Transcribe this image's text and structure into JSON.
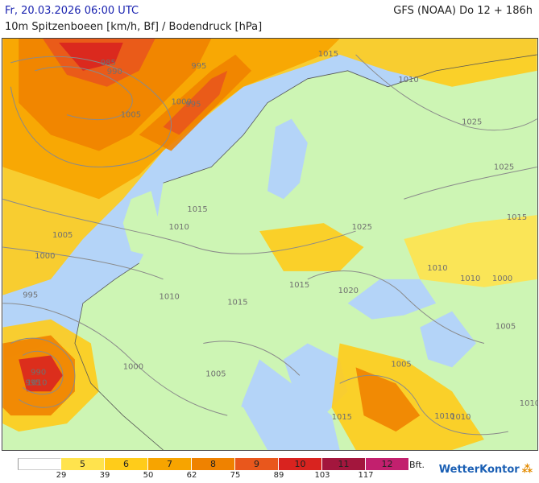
{
  "header": {
    "date": "Fr, 20.03.2026 06:00 UTC",
    "parameter": "10m Spitzenboeen [km/h, Bf] / Bodendruck [hPa]",
    "model": "GFS (NOAA) Do 12 + 186h"
  },
  "legend": {
    "bft_unit": "Bft.",
    "classes": [
      {
        "bft": "",
        "color": "#ffffff",
        "text_color": "#222222"
      },
      {
        "bft": "5",
        "color": "#ffe34d",
        "text_color": "#222222"
      },
      {
        "bft": "6",
        "color": "#ffcc1a",
        "text_color": "#222222"
      },
      {
        "bft": "7",
        "color": "#f7a400",
        "text_color": "#222222"
      },
      {
        "bft": "8",
        "color": "#ef8200",
        "text_color": "#222222"
      },
      {
        "bft": "9",
        "color": "#e9571c",
        "text_color": "#222222"
      },
      {
        "bft": "10",
        "color": "#d9231f",
        "text_color": "#222222"
      },
      {
        "bft": "11",
        "color": "#a3163d",
        "text_color": "#222222"
      },
      {
        "bft": "12",
        "color": "#c2206e",
        "text_color": "#222222"
      }
    ],
    "kmh_ticks": [
      "29",
      "39",
      "50",
      "62",
      "75",
      "89",
      "103",
      "117"
    ]
  },
  "isobars": [
    {
      "value": "995"
    },
    {
      "value": "985"
    },
    {
      "value": "990"
    },
    {
      "value": "995"
    },
    {
      "value": "1000"
    },
    {
      "value": "1005"
    },
    {
      "value": "1015"
    },
    {
      "value": "1010"
    },
    {
      "value": "1025"
    },
    {
      "value": "1025"
    },
    {
      "value": "1015"
    },
    {
      "value": "1015"
    },
    {
      "value": "1010"
    },
    {
      "value": "1005"
    },
    {
      "value": "1000"
    },
    {
      "value": "995"
    },
    {
      "value": "1025"
    },
    {
      "value": "1010"
    },
    {
      "value": "1015"
    },
    {
      "value": "1020"
    },
    {
      "value": "1010"
    },
    {
      "value": "1015"
    },
    {
      "value": "1000"
    },
    {
      "value": "1010"
    },
    {
      "value": "990"
    },
    {
      "value": "995"
    },
    {
      "value": "1000"
    },
    {
      "value": "1005"
    },
    {
      "value": "1005"
    },
    {
      "value": "1005"
    },
    {
      "value": "1015"
    },
    {
      "value": "1010"
    },
    {
      "value": "1010"
    },
    {
      "value": "1010"
    },
    {
      "value": "1010"
    }
  ],
  "brand": {
    "name": "WetterKontor",
    "mark": "⁂"
  },
  "colors": {
    "sea": "#b4d4f8",
    "land_calm": "#cdf5b4",
    "coast": "#555555",
    "isobar": "#8a8a8a"
  }
}
